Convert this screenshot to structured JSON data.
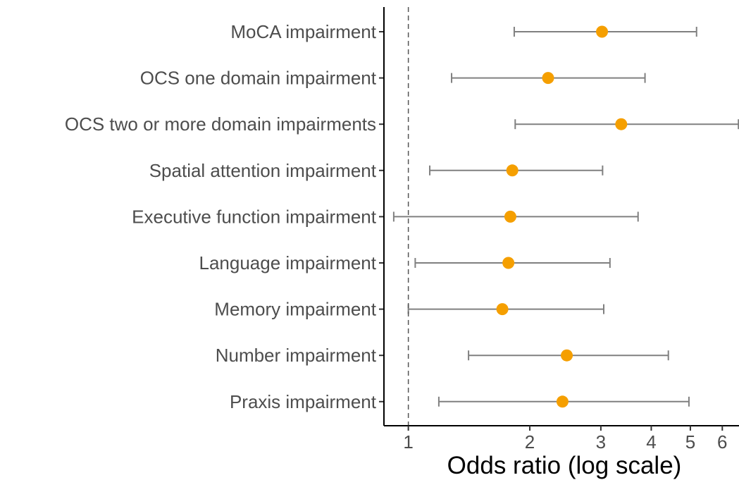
{
  "chart_data": {
    "type": "forest",
    "xlabel": "Odds ratio (log scale)",
    "x_scale": "log",
    "xlim": [
      0.87,
      6.6
    ],
    "x_ticks": [
      1,
      2,
      3,
      4,
      5,
      6
    ],
    "x_tick_labels": [
      "1",
      "2",
      "3",
      "4",
      "5",
      "6"
    ],
    "reference_line": 1,
    "grid": false,
    "point_color": "#F59F00",
    "interval_color": "#808080",
    "rows": [
      {
        "label": "MoCA impairment",
        "or": 3.02,
        "lower": 1.83,
        "upper": 5.18
      },
      {
        "label": "OCS one domain impairment",
        "or": 2.22,
        "lower": 1.28,
        "upper": 3.86
      },
      {
        "label": "OCS two or more domain impairments",
        "or": 3.37,
        "lower": 1.84,
        "upper": 6.58
      },
      {
        "label": "Spatial attention impairment",
        "or": 1.81,
        "lower": 1.13,
        "upper": 3.03
      },
      {
        "label": "Executive function impairment",
        "or": 1.79,
        "lower": 0.92,
        "upper": 3.71
      },
      {
        "label": "Language impairment",
        "or": 1.77,
        "lower": 1.04,
        "upper": 3.16
      },
      {
        "label": "Memory impairment",
        "or": 1.71,
        "lower": 1.0,
        "upper": 3.05
      },
      {
        "label": "Number impairment",
        "or": 2.47,
        "lower": 1.41,
        "upper": 4.41
      },
      {
        "label": "Praxis impairment",
        "or": 2.41,
        "lower": 1.19,
        "upper": 4.96
      }
    ]
  }
}
